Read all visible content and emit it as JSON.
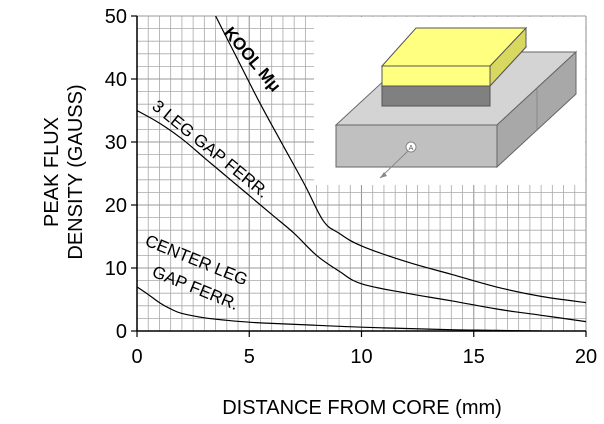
{
  "chart_data": {
    "type": "line",
    "title": "",
    "xlabel": "DISTANCE FROM CORE (mm)",
    "ylabel_lines": [
      "PEAK FLUX",
      "DENSITY (GAUSS)"
    ],
    "xlim": [
      0,
      20
    ],
    "ylim": [
      0,
      50
    ],
    "x_ticks": [
      0,
      5,
      10,
      15,
      20
    ],
    "y_ticks": [
      0,
      10,
      20,
      30,
      40,
      50
    ],
    "grid": true,
    "series": [
      {
        "name": "KOOL Mμ",
        "points": [
          [
            3.5,
            50
          ],
          [
            4.5,
            43
          ],
          [
            5.5,
            36
          ],
          [
            6.5,
            29.5
          ],
          [
            7.5,
            23
          ],
          [
            8.3,
            17.5
          ],
          [
            9,
            15.5
          ],
          [
            10,
            13.5
          ],
          [
            12,
            11
          ],
          [
            14,
            9
          ],
          [
            16,
            7
          ],
          [
            18,
            5.5
          ],
          [
            20,
            4.5
          ]
        ]
      },
      {
        "name": "3 LEG GAP FERR.",
        "points": [
          [
            0,
            35
          ],
          [
            1,
            33
          ],
          [
            2,
            30.5
          ],
          [
            3,
            27.5
          ],
          [
            4,
            24.5
          ],
          [
            5,
            21.5
          ],
          [
            6,
            18.5
          ],
          [
            7,
            15.5
          ],
          [
            8,
            12
          ],
          [
            9,
            9.5
          ],
          [
            10,
            7.5
          ],
          [
            12,
            6
          ],
          [
            14,
            4.8
          ],
          [
            16,
            3.5
          ],
          [
            18,
            2.5
          ],
          [
            20,
            1.5
          ]
        ]
      },
      {
        "name": "CENTER LEG GAP FERR.",
        "points": [
          [
            0,
            7
          ],
          [
            0.5,
            5.8
          ],
          [
            1,
            4.5
          ],
          [
            1.5,
            3.5
          ],
          [
            2,
            2.8
          ],
          [
            3,
            2.1
          ],
          [
            4,
            1.7
          ],
          [
            5,
            1.4
          ],
          [
            6,
            1.2
          ],
          [
            8,
            0.9
          ],
          [
            10,
            0.6
          ],
          [
            12,
            0.4
          ],
          [
            14,
            0.2
          ],
          [
            16,
            0.1
          ],
          [
            18,
            0
          ]
        ]
      }
    ],
    "labels": {
      "kool": "KOOL Mμ",
      "three_leg": "3 LEG GAP FERR.",
      "center_line1": "CENTER LEG",
      "center_line2": "GAP FERR."
    },
    "inset": {
      "description_icon": "core-gap-3d-diagram",
      "colors": {
        "top_block": "#ffff80",
        "spacer": "#808080",
        "base": "#c0c0c0"
      },
      "marker_text": "A"
    }
  }
}
